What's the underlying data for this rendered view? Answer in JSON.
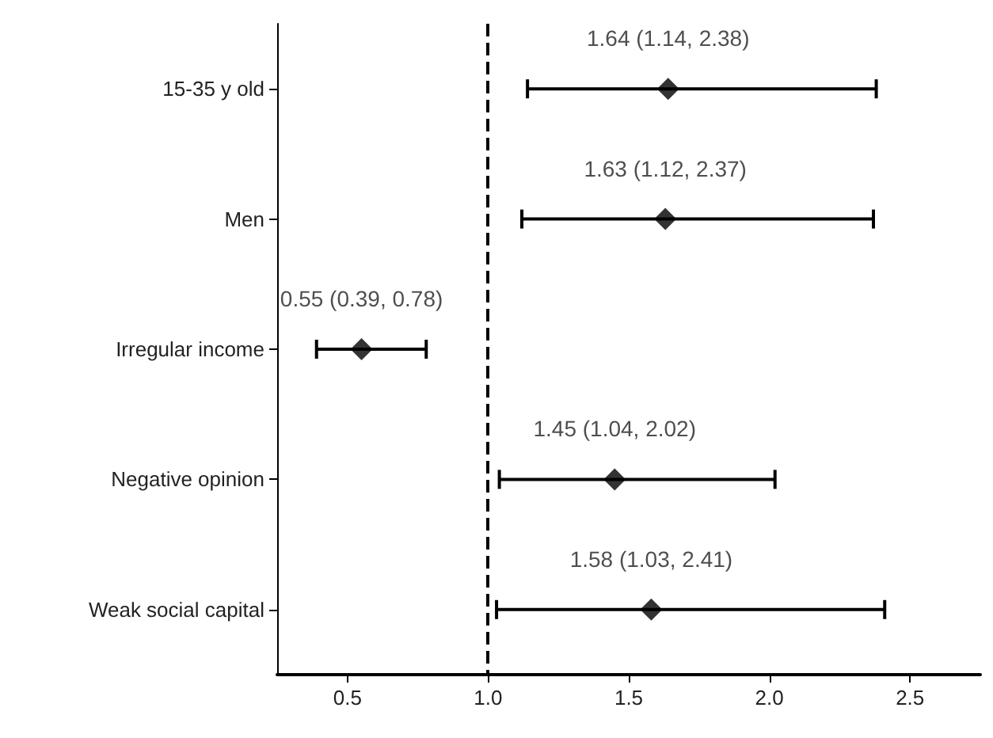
{
  "chart_data": {
    "type": "scatter",
    "orientation": "horizontal",
    "categories": [
      "15-35 y old",
      "Men",
      "Irregular income",
      "Negative opinion",
      "Weak social capital"
    ],
    "values": [
      1.64,
      1.63,
      0.55,
      1.45,
      1.58
    ],
    "errors": [
      [
        1.14,
        2.38
      ],
      [
        1.12,
        2.37
      ],
      [
        0.39,
        0.78
      ],
      [
        1.04,
        2.02
      ],
      [
        1.03,
        2.41
      ]
    ],
    "value_labels": [
      "1.64 (1.14, 2.38)",
      "1.63 (1.12, 2.37)",
      "0.55 (0.39, 0.78)",
      "1.45 (1.04, 2.02)",
      "1.58 (1.03, 2.41)"
    ],
    "color": "#000000",
    "marker": "diamond",
    "grid": false,
    "xlim": [
      0.25,
      2.75
    ],
    "xticks": [
      0.5,
      {
        "value": 1,
        "label": "1.0"
      },
      1.5,
      {
        "value": 2,
        "label": "2.0"
      },
      2.5
    ],
    "ref_lines": [
      {
        "axis": "x",
        "value": 1.0,
        "line_style": "dashed",
        "color": "#000000"
      }
    ]
  }
}
